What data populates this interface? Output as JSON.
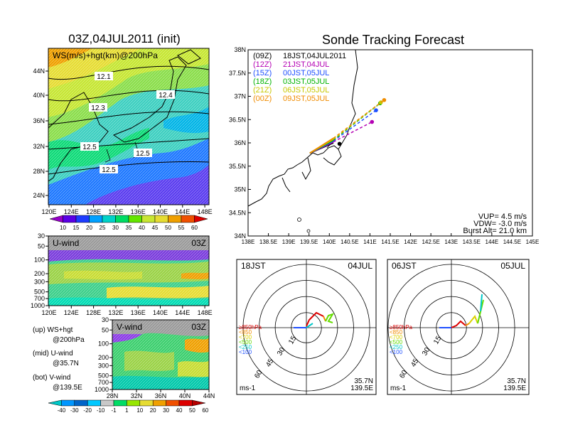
{
  "map_panel": {
    "title": "03Z,04JUL2011 (init)",
    "label": "WS(m/s)+hgt(km)@200hPa",
    "lat_ticks": [
      "44N",
      "40N",
      "36N",
      "32N",
      "28N",
      "24N"
    ],
    "lon_ticks": [
      "120E",
      "124E",
      "128E",
      "132E",
      "136E",
      "140E",
      "144E",
      "148E"
    ],
    "contour_labels": [
      "12.1",
      "12.4",
      "12.3",
      "12.5",
      "12.5",
      "12.5"
    ],
    "colorbar_ticks": [
      "10",
      "15",
      "20",
      "25",
      "30",
      "35",
      "40",
      "45",
      "50",
      "55",
      "60"
    ],
    "colors": [
      "#9600c8",
      "#5a00e6",
      "#1e3cff",
      "#00a0ff",
      "#00d2c8",
      "#00dc64",
      "#64e600",
      "#c8e632",
      "#e6dc32",
      "#f0a000",
      "#f05000",
      "#dc0000"
    ]
  },
  "u_panel": {
    "label": "U-wind",
    "time": "03Z",
    "y_ticks": [
      "30",
      "50",
      "100",
      "200",
      "300",
      "500",
      "700",
      "1000"
    ],
    "x_ticks": [
      "120E",
      "124E",
      "128E",
      "132E",
      "136E",
      "140E",
      "144E",
      "148E"
    ]
  },
  "v_panel": {
    "label": "V-wind",
    "time": "03Z",
    "y_ticks": [
      "30",
      "50",
      "100",
      "200",
      "300",
      "500",
      "700",
      "1000"
    ],
    "x_ticks": [
      "28N",
      "32N",
      "36N",
      "40N",
      "44N"
    ]
  },
  "notes": {
    "up1": "(up) WS+hgt",
    "up2": "@200hPa",
    "mid1": "(mid) U-wind",
    "mid2": "@35.7N",
    "bot1": "(bot) V-wind",
    "bot2": "@139.5E"
  },
  "bottom_colorbar": {
    "ticks": [
      "-40",
      "-30",
      "-20",
      "-10",
      "-1",
      "1",
      "10",
      "20",
      "30",
      "40",
      "50",
      "60"
    ],
    "colors": [
      "#00c8c8",
      "#0096ff",
      "#0064c8",
      "#00c8ff",
      "#c8c8c8",
      "#00dc64",
      "#96e600",
      "#e6dc32",
      "#f0a000",
      "#f05000",
      "#dc0000",
      "#b40000"
    ]
  },
  "tracking": {
    "title": "Sonde Tracking Forecast",
    "legend": [
      {
        "code": "(09Z)",
        "time": "18JST,04JUL2011",
        "color": "#000000"
      },
      {
        "code": "(12Z)",
        "time": "21JST,04JUL",
        "color": "#b400b4"
      },
      {
        "code": "(15Z)",
        "time": "00JST,05JUL",
        "color": "#1e50ff"
      },
      {
        "code": "(18Z)",
        "time": "03JST,05JUL",
        "color": "#00b400"
      },
      {
        "code": "(21Z)",
        "time": "06JST,05JUL",
        "color": "#c8c800"
      },
      {
        "code": "(00Z)",
        "time": "09JST,05JUL",
        "color": "#f08c00"
      }
    ],
    "lat_ticks": [
      "38N",
      "37.5N",
      "37N",
      "36.5N",
      "36N",
      "35.5N",
      "35N",
      "34.5N",
      "34N"
    ],
    "lon_ticks": [
      "138E",
      "138.5E",
      "139E",
      "139.5E",
      "140E",
      "140.5E",
      "141E",
      "141.5E",
      "142E",
      "142.5E",
      "143E",
      "143.5E",
      "144E",
      "144.5E",
      "145E"
    ],
    "vup": "VUP= 4.5 m/s",
    "vdw": "VDW= -3.0 m/s",
    "burst": "Burst Alt= 21.0 km"
  },
  "hodo_left": {
    "time": "18JST",
    "date": "04JUL",
    "rings": [
      "15",
      "30",
      "45",
      "60"
    ],
    "levels": [
      {
        "label": "≥850hPa",
        "color": "#dc0000"
      },
      {
        "label": "<850",
        "color": "#f08c00"
      },
      {
        "label": "<700",
        "color": "#dcd200"
      },
      {
        "label": "<500",
        "color": "#64dc00"
      },
      {
        "label": "<250",
        "color": "#00c8c8"
      },
      {
        "label": "<100",
        "color": "#1e50ff"
      }
    ],
    "unit": "ms-1",
    "lat": "35.7N",
    "lon": "139.5E"
  },
  "hodo_right": {
    "time": "06JST",
    "date": "05JUL",
    "rings": [
      "15",
      "30",
      "45",
      "60"
    ],
    "levels": [
      {
        "label": "≥850hPa",
        "color": "#dc0000"
      },
      {
        "label": "<850",
        "color": "#f08c00"
      },
      {
        "label": "<700",
        "color": "#dcd200"
      },
      {
        "label": "<500",
        "color": "#64dc00"
      },
      {
        "label": "<250",
        "color": "#00c8c8"
      },
      {
        "label": "<100",
        "color": "#1e50ff"
      }
    ],
    "unit": "ms-1",
    "lat": "35.7N",
    "lon": "139.5E"
  }
}
